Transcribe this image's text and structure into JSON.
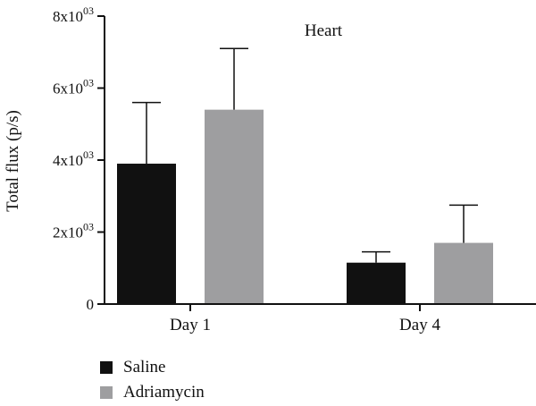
{
  "chart_data": {
    "type": "bar",
    "title": "Heart",
    "ylabel": "Total flux (p/s)",
    "xlabel": "",
    "categories": [
      "Day 1",
      "Day 4"
    ],
    "ylim": [
      0,
      8000
    ],
    "yticks": [
      {
        "value": 0,
        "base": "0",
        "exp": ""
      },
      {
        "value": 2000,
        "base": "2x10",
        "exp": "03"
      },
      {
        "value": 4000,
        "base": "4x10",
        "exp": "03"
      },
      {
        "value": 6000,
        "base": "6x10",
        "exp": "03"
      },
      {
        "value": 8000,
        "base": "8x10",
        "exp": "03"
      }
    ],
    "series": [
      {
        "name": "Saline",
        "color": "#111111",
        "values": [
          3900,
          1150
        ],
        "errors": [
          1700,
          300
        ]
      },
      {
        "name": "Adriamycin",
        "color": "#9e9ea0",
        "values": [
          5400,
          1700
        ],
        "errors": [
          1700,
          1050
        ]
      }
    ],
    "grid": false,
    "legend_position": "bottom-left"
  }
}
